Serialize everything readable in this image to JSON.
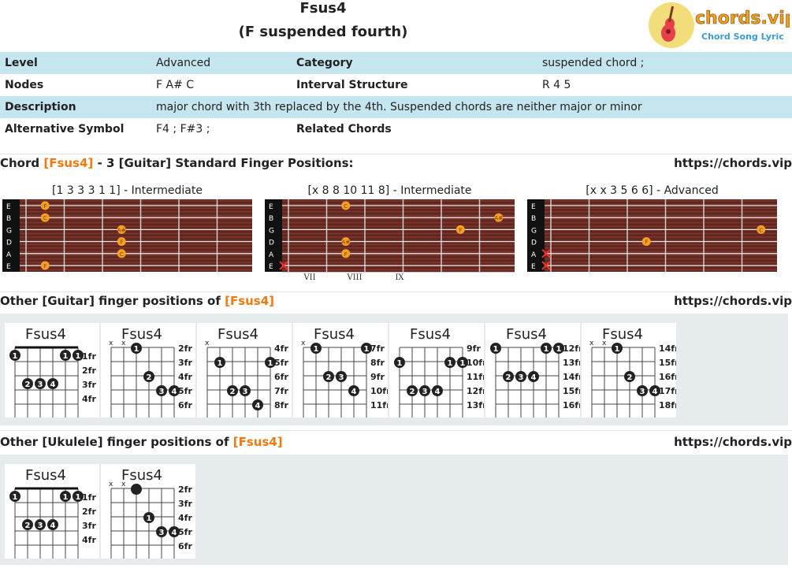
{
  "header": {
    "title": "Fsus4",
    "subtitle": "(F suspended fourth)",
    "logo_text": "chords.vip",
    "logo_tagline": "Chord Song Lyric"
  },
  "info": {
    "level_label": "Level",
    "level": "Advanced",
    "category_label": "Category",
    "category": "suspended chord ;",
    "nodes_label": "Nodes",
    "nodes": "F A# C",
    "interval_label": "Interval Structure",
    "interval": "R 4 5",
    "description_label": "Description",
    "description": "major chord with 3th replaced by the 4th. Suspended chords are neither major or minor",
    "alt_label": "Alternative Symbol",
    "alt": "F4 ; F#3 ;",
    "related_label": "Related Chords"
  },
  "sections": {
    "standard": {
      "pre": "Chord ",
      "chord": "[Fsus4]",
      "post": " - 3 [Guitar] Standard Finger Positions:",
      "url": "https://chords.vip"
    },
    "guitar": {
      "pre": "Other [Guitar] finger positions of ",
      "chord": "[Fsus4]",
      "url": "https://chords.vip"
    },
    "ukulele": {
      "pre": "Other [Ukulele] finger positions of ",
      "chord": "[Fsus4]",
      "url": "https://chords.vip"
    }
  },
  "fretboards": [
    {
      "caption": "[1 3 3 3 1 1] - Intermediate",
      "strings": [
        "E",
        "B",
        "G",
        "D",
        "A",
        "E"
      ],
      "notes": [
        {
          "s": 0,
          "f": 1,
          "n": "F"
        },
        {
          "s": 1,
          "f": 1,
          "n": "C"
        },
        {
          "s": 2,
          "f": 3,
          "n": "A#"
        },
        {
          "s": 3,
          "f": 3,
          "n": "F"
        },
        {
          "s": 4,
          "f": 3,
          "n": "C"
        },
        {
          "s": 5,
          "f": 1,
          "n": "F"
        }
      ],
      "muted": [],
      "roman": []
    },
    {
      "caption": "[x 8 8 10 11 8] - Intermediate",
      "strings": [
        "E",
        "B",
        "G",
        "D",
        "A",
        "E"
      ],
      "notes": [
        {
          "s": 0,
          "f": 2,
          "n": "C"
        },
        {
          "s": 1,
          "f": 6,
          "n": "A#"
        },
        {
          "s": 2,
          "f": 5,
          "n": "F"
        },
        {
          "s": 3,
          "f": 2,
          "n": "A#"
        },
        {
          "s": 4,
          "f": 2,
          "n": "F"
        }
      ],
      "muted": [
        5
      ],
      "roman": [
        "VII",
        "VIII",
        "IX"
      ]
    },
    {
      "caption": "[x x 3 5 6 6] - Advanced",
      "strings": [
        "E",
        "B",
        "G",
        "D",
        "A",
        "E"
      ],
      "notes": [
        {
          "s": 2,
          "f": 6,
          "n": "C"
        },
        {
          "s": 3,
          "f": 3,
          "n": "F"
        }
      ],
      "muted": [
        4,
        5
      ],
      "roman": []
    }
  ],
  "guitar_charts": [
    {
      "name": "Fsus4",
      "frets": [
        "1fr",
        "2fr",
        "3fr",
        "4fr"
      ],
      "top": [],
      "barre": true,
      "dots": [
        {
          "r": 0,
          "c": 0,
          "t": "1"
        },
        {
          "r": 0,
          "c": 4,
          "t": "1"
        },
        {
          "r": 0,
          "c": 5,
          "t": "1"
        },
        {
          "r": 2,
          "c": 1,
          "t": "2"
        },
        {
          "r": 2,
          "c": 2,
          "t": "3"
        },
        {
          "r": 2,
          "c": 3,
          "t": "4"
        }
      ]
    },
    {
      "name": "Fsus4",
      "frets": [
        "2fr",
        "3fr",
        "4fr",
        "5fr",
        "6fr"
      ],
      "top": [
        "x",
        "x"
      ],
      "barre": false,
      "dots": [
        {
          "r": 0,
          "c": 2,
          "t": "1"
        },
        {
          "r": 2,
          "c": 3,
          "t": "2"
        },
        {
          "r": 3,
          "c": 4,
          "t": "3"
        },
        {
          "r": 3,
          "c": 5,
          "t": "4"
        }
      ]
    },
    {
      "name": "Fsus4",
      "frets": [
        "4fr",
        "5fr",
        "6fr",
        "7fr",
        "8fr"
      ],
      "top": [
        "x"
      ],
      "barre": false,
      "dots": [
        {
          "r": 1,
          "c": 1,
          "t": "1"
        },
        {
          "r": 1,
          "c": 5,
          "t": "1"
        },
        {
          "r": 3,
          "c": 2,
          "t": "2"
        },
        {
          "r": 3,
          "c": 3,
          "t": "3"
        },
        {
          "r": 4,
          "c": 4,
          "t": "4"
        }
      ]
    },
    {
      "name": "Fsus4",
      "frets": [
        "7fr",
        "8fr",
        "9fr",
        "10fr",
        "11fr"
      ],
      "top": [
        "x"
      ],
      "barre": false,
      "dots": [
        {
          "r": 0,
          "c": 1,
          "t": "1"
        },
        {
          "r": 0,
          "c": 5,
          "t": "1"
        },
        {
          "r": 2,
          "c": 2,
          "t": "2"
        },
        {
          "r": 2,
          "c": 3,
          "t": "3"
        },
        {
          "r": 3,
          "c": 4,
          "t": "4"
        }
      ]
    },
    {
      "name": "Fsus4",
      "frets": [
        "9fr",
        "10fr",
        "11fr",
        "12fr",
        "13fr"
      ],
      "top": [],
      "barre": false,
      "dots": [
        {
          "r": 1,
          "c": 0,
          "t": "1"
        },
        {
          "r": 1,
          "c": 4,
          "t": "1"
        },
        {
          "r": 1,
          "c": 5,
          "t": "1"
        },
        {
          "r": 3,
          "c": 1,
          "t": "2"
        },
        {
          "r": 3,
          "c": 2,
          "t": "3"
        },
        {
          "r": 3,
          "c": 3,
          "t": "4"
        }
      ]
    },
    {
      "name": "Fsus4",
      "frets": [
        "12fr",
        "13fr",
        "14fr",
        "15fr",
        "16fr"
      ],
      "top": [],
      "barre": false,
      "dots": [
        {
          "r": 0,
          "c": 0,
          "t": "1"
        },
        {
          "r": 0,
          "c": 4,
          "t": "1"
        },
        {
          "r": 0,
          "c": 5,
          "t": "1"
        },
        {
          "r": 2,
          "c": 1,
          "t": "2"
        },
        {
          "r": 2,
          "c": 2,
          "t": "3"
        },
        {
          "r": 2,
          "c": 3,
          "t": "4"
        }
      ]
    },
    {
      "name": "Fsus4",
      "frets": [
        "14fr",
        "15fr",
        "16fr",
        "17fr",
        "18fr"
      ],
      "top": [
        "x",
        "x"
      ],
      "barre": false,
      "dots": [
        {
          "r": 0,
          "c": 2,
          "t": "1"
        },
        {
          "r": 2,
          "c": 3,
          "t": "2"
        },
        {
          "r": 3,
          "c": 4,
          "t": "3"
        },
        {
          "r": 3,
          "c": 5,
          "t": "4"
        }
      ]
    }
  ],
  "ukulele_charts": [
    {
      "name": "Fsus4",
      "frets": [
        "1fr",
        "2fr",
        "3fr",
        "4fr"
      ],
      "top": [],
      "barre": true,
      "dots": [
        {
          "r": 0,
          "c": 0,
          "t": "1"
        },
        {
          "r": 0,
          "c": 4,
          "t": "1"
        },
        {
          "r": 0,
          "c": 5,
          "t": "1"
        },
        {
          "r": 2,
          "c": 1,
          "t": "2"
        },
        {
          "r": 2,
          "c": 2,
          "t": "3"
        },
        {
          "r": 2,
          "c": 3,
          "t": "4"
        }
      ]
    },
    {
      "name": "Fsus4",
      "frets": [
        "2fr",
        "3fr",
        "4fr",
        "5fr",
        "6fr"
      ],
      "top": [
        "x",
        "x"
      ],
      "barre": false,
      "dots": [
        {
          "r": 0,
          "c": 2,
          "t": ""
        },
        {
          "r": 2,
          "c": 3,
          "t": "1"
        },
        {
          "r": 3,
          "c": 4,
          "t": "3"
        },
        {
          "r": 3,
          "c": 5,
          "t": "4"
        }
      ]
    }
  ]
}
